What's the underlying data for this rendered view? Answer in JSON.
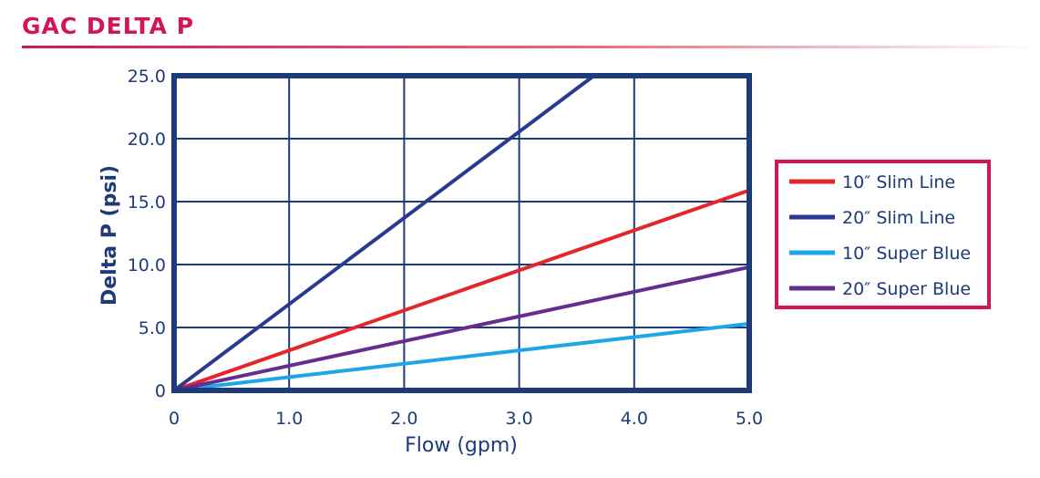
{
  "page": {
    "title": "GAC DELTA P"
  },
  "chart_data": {
    "type": "line",
    "title": "GAC DELTA P",
    "xlabel": "Flow (gpm)",
    "ylabel": "Delta P (psi)",
    "xlim": [
      0,
      5
    ],
    "ylim": [
      0,
      25
    ],
    "xticks": [
      "0",
      "1.0",
      "2.0",
      "3.0",
      "4.0",
      "5.0"
    ],
    "yticks": [
      "0",
      "5.0",
      "10.0",
      "15.0",
      "20.0",
      "25.0"
    ],
    "grid": true,
    "legend_position": "right",
    "colors": {
      "frame": "#1d3a7a",
      "legend_border": "#d4145a",
      "title": "#d4145a"
    },
    "series": [
      {
        "name": "10″ Slim Line",
        "color": "#e3262b",
        "x": [
          0,
          5.0
        ],
        "y": [
          0,
          15.9
        ]
      },
      {
        "name": "20″ Slim Line",
        "color": "#2b3990",
        "x": [
          0,
          3.65
        ],
        "y": [
          0,
          25.0
        ]
      },
      {
        "name": "10″ Super Blue",
        "color": "#1ea6e8",
        "x": [
          0,
          5.0
        ],
        "y": [
          0,
          5.3
        ]
      },
      {
        "name": "20″ Super Blue",
        "color": "#662d91",
        "x": [
          0,
          5.0
        ],
        "y": [
          0,
          9.8
        ]
      }
    ]
  }
}
